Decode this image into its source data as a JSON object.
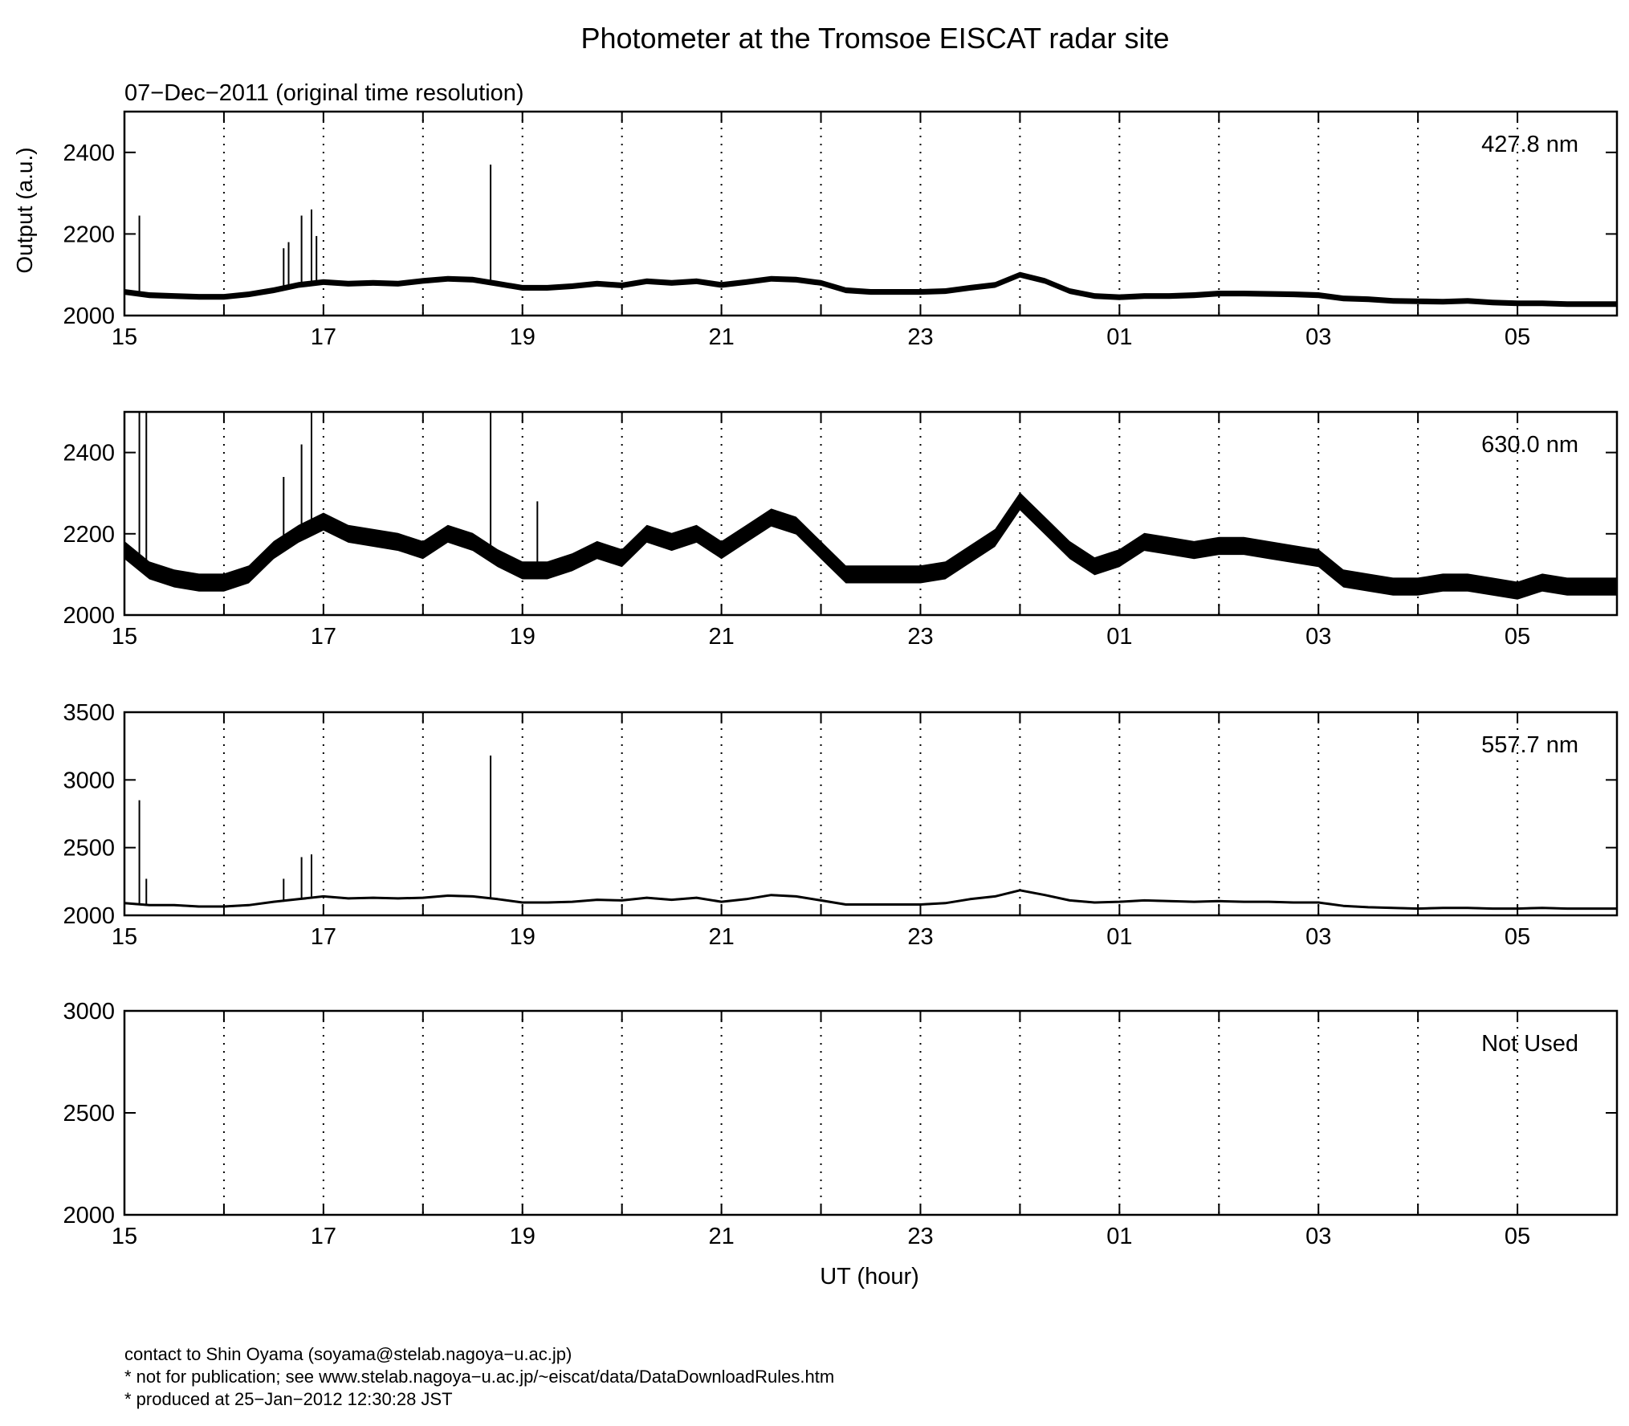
{
  "chart_data": {
    "type": "line",
    "title": "Photometer at the Tromsoe EISCAT radar site",
    "subtitle": "07−Dec−2011 (original time resolution)",
    "ylabel": "Output (a.u.)",
    "xlabel": "UT (hour)",
    "x_tick_labels": [
      "15",
      "17",
      "19",
      "21",
      "23",
      "01",
      "03",
      "05"
    ],
    "x_range_hours": [
      15,
      30
    ],
    "grid": "vertical dotted lines every hour",
    "panels": [
      {
        "label": "427.8 nm",
        "ylim": [
          2000,
          2500
        ],
        "yticks": [
          "2000",
          "2200",
          "2400"
        ],
        "series": {
          "x": [
            15,
            15.25,
            15.5,
            15.75,
            16,
            16.25,
            16.5,
            16.75,
            17,
            17.25,
            17.5,
            17.75,
            18,
            18.25,
            18.5,
            18.75,
            19,
            19.25,
            19.5,
            19.75,
            20,
            20.25,
            20.5,
            20.75,
            21,
            21.25,
            21.5,
            21.75,
            22,
            22.25,
            22.5,
            22.75,
            23,
            23.25,
            23.5,
            23.75,
            24,
            24.25,
            24.5,
            24.75,
            25,
            25.25,
            25.5,
            25.75,
            26,
            26.25,
            26.5,
            26.75,
            27,
            27.25,
            27.5,
            27.75,
            28,
            28.25,
            28.5,
            28.75,
            29,
            29.25,
            29.5,
            29.75,
            30
          ],
          "y": [
            2058,
            2050,
            2048,
            2046,
            2046,
            2052,
            2062,
            2075,
            2082,
            2078,
            2080,
            2078,
            2085,
            2090,
            2088,
            2078,
            2068,
            2068,
            2072,
            2078,
            2074,
            2084,
            2080,
            2084,
            2075,
            2082,
            2090,
            2088,
            2080,
            2062,
            2058,
            2058,
            2058,
            2060,
            2068,
            2075,
            2100,
            2085,
            2060,
            2048,
            2045,
            2048,
            2048,
            2050,
            2054,
            2054,
            2053,
            2052,
            2050,
            2042,
            2040,
            2036,
            2035,
            2034,
            2036,
            2032,
            2030,
            2030,
            2028,
            2028,
            2028
          ],
          "spikes": [
            [
              15.15,
              2245
            ],
            [
              16.6,
              2165
            ],
            [
              16.65,
              2180
            ],
            [
              16.78,
              2245
            ],
            [
              16.88,
              2260
            ],
            [
              16.93,
              2195
            ],
            [
              18.68,
              2370
            ]
          ]
        }
      },
      {
        "label": "630.0 nm",
        "ylim": [
          2000,
          2500
        ],
        "yticks": [
          "2000",
          "2200",
          "2400"
        ],
        "series": {
          "x": [
            15,
            15.25,
            15.5,
            15.75,
            16,
            16.25,
            16.5,
            16.75,
            17,
            17.25,
            17.5,
            17.75,
            18,
            18.25,
            18.5,
            18.75,
            19,
            19.25,
            19.5,
            19.75,
            20,
            20.25,
            20.5,
            20.75,
            21,
            21.25,
            21.5,
            21.75,
            22,
            22.25,
            22.5,
            22.75,
            23,
            23.25,
            23.5,
            23.75,
            24,
            24.25,
            24.5,
            24.75,
            25,
            25.25,
            25.5,
            25.75,
            26,
            26.25,
            26.5,
            26.75,
            27,
            27.25,
            27.5,
            27.75,
            28,
            28.25,
            28.5,
            28.75,
            29,
            29.25,
            29.5,
            29.75,
            30
          ],
          "y": [
            2160,
            2110,
            2090,
            2080,
            2080,
            2100,
            2160,
            2200,
            2230,
            2200,
            2190,
            2180,
            2160,
            2200,
            2180,
            2140,
            2110,
            2110,
            2130,
            2160,
            2140,
            2200,
            2180,
            2200,
            2160,
            2200,
            2240,
            2220,
            2160,
            2100,
            2100,
            2100,
            2100,
            2110,
            2150,
            2190,
            2280,
            2220,
            2160,
            2120,
            2140,
            2180,
            2170,
            2160,
            2170,
            2170,
            2160,
            2150,
            2140,
            2090,
            2080,
            2070,
            2070,
            2080,
            2080,
            2070,
            2060,
            2080,
            2070,
            2070,
            2070
          ],
          "spikes": [
            [
              15.15,
              2500
            ],
            [
              15.22,
              2500
            ],
            [
              16.6,
              2340
            ],
            [
              16.78,
              2420
            ],
            [
              16.88,
              2500
            ],
            [
              18.68,
              2500
            ],
            [
              19.15,
              2280
            ]
          ]
        }
      },
      {
        "label": "557.7 nm",
        "ylim": [
          2000,
          3500
        ],
        "yticks": [
          "2000",
          "2500",
          "3000",
          "3500"
        ],
        "series": {
          "x": [
            15,
            15.25,
            15.5,
            15.75,
            16,
            16.25,
            16.5,
            16.75,
            17,
            17.25,
            17.5,
            17.75,
            18,
            18.25,
            18.5,
            18.75,
            19,
            19.25,
            19.5,
            19.75,
            20,
            20.25,
            20.5,
            20.75,
            21,
            21.25,
            21.5,
            21.75,
            22,
            22.25,
            22.5,
            22.75,
            23,
            23.25,
            23.5,
            23.75,
            24,
            24.25,
            24.5,
            24.75,
            25,
            25.25,
            25.5,
            25.75,
            26,
            26.25,
            26.5,
            26.75,
            27,
            27.25,
            27.5,
            27.75,
            28,
            28.25,
            28.5,
            28.75,
            29,
            29.25,
            29.5,
            29.75,
            30
          ],
          "y": [
            2090,
            2075,
            2075,
            2065,
            2065,
            2075,
            2100,
            2120,
            2140,
            2125,
            2130,
            2125,
            2130,
            2145,
            2140,
            2120,
            2095,
            2095,
            2100,
            2115,
            2110,
            2130,
            2115,
            2130,
            2100,
            2120,
            2150,
            2140,
            2110,
            2080,
            2080,
            2080,
            2080,
            2090,
            2120,
            2140,
            2185,
            2150,
            2110,
            2095,
            2100,
            2110,
            2105,
            2100,
            2105,
            2100,
            2100,
            2095,
            2095,
            2070,
            2060,
            2055,
            2050,
            2055,
            2055,
            2050,
            2050,
            2055,
            2050,
            2050,
            2050
          ],
          "spikes": [
            [
              15.15,
              2850
            ],
            [
              15.22,
              2270
            ],
            [
              16.6,
              2270
            ],
            [
              16.78,
              2430
            ],
            [
              16.88,
              2450
            ],
            [
              18.68,
              3180
            ]
          ]
        }
      },
      {
        "label": "Not Used",
        "ylim": [
          2000,
          3000
        ],
        "yticks": [
          "2000",
          "2500",
          "3000"
        ],
        "series": null
      }
    ]
  },
  "footer": {
    "line1": "contact to Shin Oyama (soyama@stelab.nagoya−u.ac.jp)",
    "line2": "* not for publication; see www.stelab.nagoya−u.ac.jp/~eiscat/data/DataDownloadRules.htm",
    "line3": "* produced at 25−Jan−2012 12:30:28 JST"
  }
}
